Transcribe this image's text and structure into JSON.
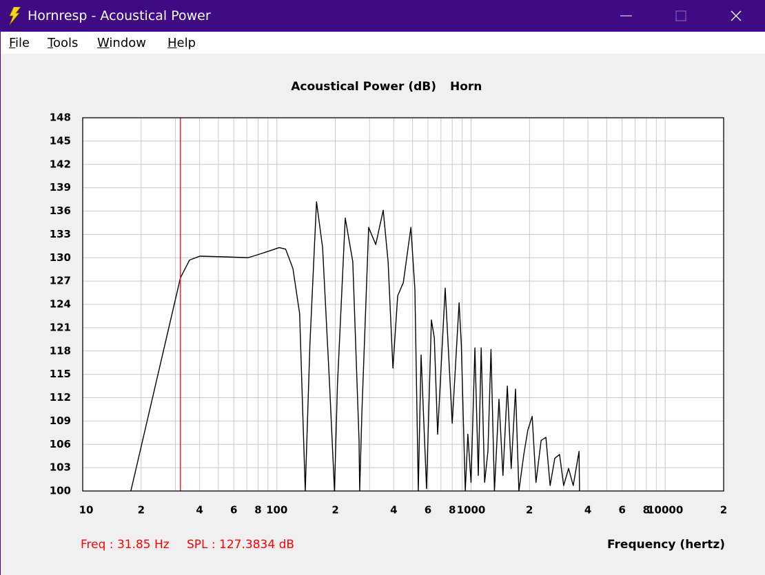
{
  "window": {
    "title": "Hornresp - Acoustical Power"
  },
  "menu": [
    "File",
    "Tools",
    "Window",
    "Help"
  ],
  "chart_data": {
    "type": "line",
    "title": "Acoustical Power (dB)",
    "subtitle": "Horn",
    "x_label": "Frequency (hertz)",
    "x_scale": "log",
    "grid": true,
    "color": "#000000",
    "grid_color": "#c8c8c8",
    "xlim": [
      10,
      20000
    ],
    "ylim": [
      100,
      148
    ],
    "xticks": [
      10,
      {
        "value": 20,
        "label": "2"
      },
      {
        "value": 40,
        "label": "4"
      },
      {
        "value": 60,
        "label": "6"
      },
      {
        "value": 80,
        "label": "8"
      },
      100,
      {
        "value": 200,
        "label": "2"
      },
      {
        "value": 400,
        "label": "4"
      },
      {
        "value": 600,
        "label": "6"
      },
      {
        "value": 800,
        "label": "8"
      },
      1000,
      {
        "value": 2000,
        "label": "2"
      },
      {
        "value": 4000,
        "label": "4"
      },
      {
        "value": 6000,
        "label": "6"
      },
      {
        "value": 8000,
        "label": "8"
      },
      10000,
      {
        "value": 20000,
        "label": "2"
      }
    ],
    "xminor_ticks": [
      30,
      50,
      70,
      90,
      300,
      500,
      700,
      900,
      3000,
      5000,
      7000,
      9000
    ],
    "yticks": [
      100,
      103,
      106,
      109,
      112,
      115,
      118,
      121,
      124,
      127,
      130,
      133,
      136,
      139,
      142,
      145,
      148
    ],
    "x": [
      17.7,
      31.85,
      35.5,
      40.1,
      55.6,
      71.1,
      87.3,
      102.8,
      111,
      121,
      131,
      140,
      148,
      160,
      172,
      187,
      198,
      205,
      225,
      246,
      265,
      267,
      274,
      297,
      323,
      353,
      374,
      396,
      419,
      448,
      490,
      514,
      535,
      553,
      590,
      625,
      647,
      673,
      736,
      800,
      868,
      891,
      934,
      963,
      1000,
      1047,
      1090,
      1128,
      1175,
      1222,
      1267,
      1320,
      1393,
      1460,
      1538,
      1610,
      1695,
      1764,
      1870,
      1960,
      2065,
      2160,
      2296,
      2430,
      2554,
      2700,
      2857,
      3000,
      3180,
      3360,
      3600,
      3620
    ],
    "values": [
      100,
      127.4,
      129.7,
      130.2,
      130.1,
      130.0,
      130.7,
      131.3,
      131.1,
      128.6,
      122.8,
      100,
      118.9,
      137.2,
      131.3,
      113.5,
      100,
      113.5,
      135.1,
      129.5,
      106.5,
      100,
      110.0,
      133.9,
      131.7,
      136.1,
      129.5,
      115.8,
      125.1,
      126.8,
      133.9,
      125.9,
      100,
      117.5,
      100.3,
      122.0,
      119.7,
      107.3,
      126.1,
      108.7,
      124.2,
      118.9,
      100,
      107.3,
      101.1,
      118.4,
      102,
      118.4,
      101.1,
      105.1,
      118.2,
      100,
      111.8,
      102,
      113.5,
      102.9,
      113.1,
      100,
      104.7,
      107.8,
      109.6,
      101.1,
      106.5,
      106.9,
      100.7,
      104.2,
      104.7,
      100.7,
      102.9,
      100.7,
      105.1,
      100
    ],
    "cursor": {
      "x": 31.85,
      "y": 127.3834,
      "x_label": "Freq : 31.85 Hz",
      "y_label": "SPL : 127.3834 dB",
      "color": "#ff0000"
    }
  }
}
